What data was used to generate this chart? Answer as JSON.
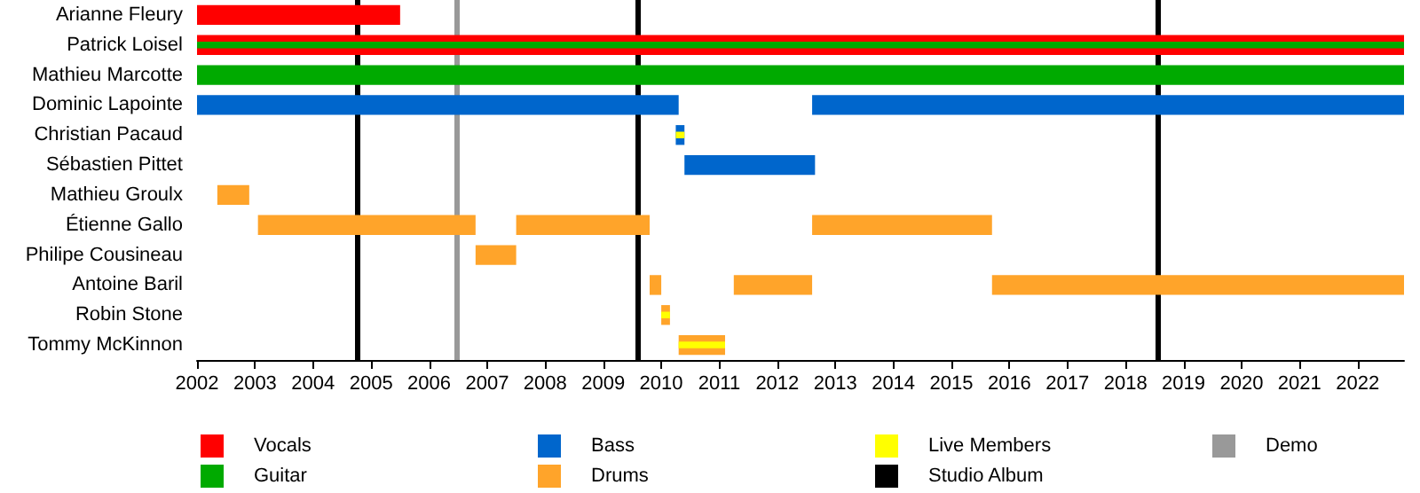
{
  "chart_data": {
    "type": "bar",
    "orientation": "horizontal",
    "categories": [
      "Arianne Fleury",
      "Patrick Loisel",
      "Mathieu Marcotte",
      "Dominic Lapointe",
      "Christian Pacaud",
      "Sébastien Pittet",
      "Mathieu Groulx",
      "Étienne Gallo",
      "Philipe Cousineau",
      "Antoine Baril",
      "Robin Stone",
      "Tommy McKinnon"
    ],
    "series": [
      {
        "name": "Vocals",
        "color": "#ff0000",
        "base": [
          2002,
          2002,
          null,
          null,
          null,
          null,
          null,
          null,
          null,
          null,
          null,
          null
        ],
        "values": [
          3.5,
          20.8,
          null,
          null,
          null,
          null,
          null,
          null,
          null,
          null,
          null,
          null
        ]
      },
      {
        "name": "Guitar",
        "color": "#00aa00",
        "base": [
          null,
          null,
          2002,
          null,
          null,
          null,
          null,
          null,
          null,
          null,
          null,
          null
        ],
        "values": [
          null,
          null,
          20.8,
          null,
          null,
          null,
          null,
          null,
          null,
          null,
          null,
          null
        ]
      },
      {
        "name": "Bass",
        "color": "#0066cc",
        "base": [
          null,
          null,
          null,
          2002,
          2010.25,
          2010.4,
          null,
          null,
          null,
          null,
          null,
          null
        ],
        "values": [
          null,
          null,
          null,
          8.3,
          0.15,
          2.25,
          null,
          null,
          null,
          null,
          null,
          null
        ]
      },
      {
        "color": "#0066cc",
        "base": [
          null,
          null,
          null,
          2012.6,
          null,
          null,
          null,
          null,
          null,
          null,
          null,
          null
        ],
        "values": [
          null,
          null,
          null,
          10.2,
          null,
          null,
          null,
          null,
          null,
          null,
          null,
          null
        ]
      },
      {
        "name": "Drums",
        "color": "#ffa42a",
        "base": [
          null,
          null,
          null,
          null,
          null,
          null,
          2002.35,
          2003.05,
          2006.8,
          2009.8,
          2010.0,
          2010.3
        ],
        "values": [
          null,
          null,
          null,
          null,
          null,
          null,
          0.55,
          3.75,
          0.7,
          0.2,
          0.15,
          0.8
        ]
      },
      {
        "color": "#ffa42a",
        "base": [
          null,
          null,
          null,
          null,
          null,
          null,
          null,
          2007.5,
          null,
          2011.25,
          null,
          null
        ],
        "values": [
          null,
          null,
          null,
          null,
          null,
          null,
          null,
          2.3,
          null,
          1.35,
          null,
          null
        ]
      },
      {
        "color": "#ffa42a",
        "base": [
          null,
          null,
          null,
          null,
          null,
          null,
          null,
          2012.6,
          null,
          2015.7,
          null,
          null
        ],
        "values": [
          null,
          null,
          null,
          null,
          null,
          null,
          null,
          3.1,
          null,
          7.1,
          null,
          null
        ]
      },
      {
        "color": "#00aa00",
        "base": [
          null,
          2002,
          null,
          null,
          null,
          null,
          null,
          null,
          null,
          null,
          null,
          null
        ],
        "values": [
          null,
          20.8,
          null,
          null,
          null,
          null,
          null,
          null,
          null,
          null,
          null,
          null
        ]
      },
      {
        "name": "Live Members",
        "color": "#ffff00",
        "base": [
          null,
          null,
          null,
          null,
          2010.25,
          null,
          null,
          null,
          null,
          null,
          2010.0,
          2010.3
        ],
        "values": [
          null,
          null,
          null,
          null,
          0.15,
          null,
          null,
          null,
          null,
          null,
          0.15,
          0.8
        ]
      }
    ],
    "xlim": [
      2002,
      2022.8
    ],
    "xticks": [
      2002,
      2003,
      2004,
      2005,
      2006,
      2007,
      2008,
      2009,
      2010,
      2011,
      2012,
      2013,
      2014,
      2015,
      2016,
      2017,
      2018,
      2019,
      2020,
      2021,
      2022
    ],
    "ref_lines": [
      {
        "axis": "x",
        "value": 2004.75,
        "label": "Studio Album",
        "color": "#000000"
      },
      {
        "axis": "x",
        "value": 2006.46,
        "label": "Demo",
        "color": "#999999"
      },
      {
        "axis": "x",
        "value": 2009.58,
        "color": "#000000"
      },
      {
        "axis": "x",
        "value": 2018.57,
        "color": "#000000"
      }
    ],
    "grid": false,
    "legend": "bottom"
  }
}
